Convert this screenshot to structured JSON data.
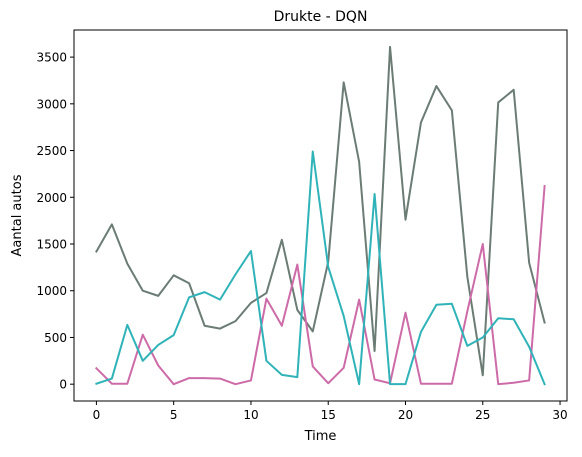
{
  "chart_data": {
    "type": "line",
    "title": "Drukte - DQN",
    "xlabel": "Time",
    "ylabel": "Aantal autos",
    "xlim": [
      -1.45,
      30.45
    ],
    "ylim": [
      -180,
      3790
    ],
    "xticks": [
      0,
      5,
      10,
      15,
      20,
      25,
      30
    ],
    "yticks": [
      0,
      500,
      1000,
      1500,
      2000,
      2500,
      3000,
      3500
    ],
    "grid": false,
    "x": [
      0,
      1,
      2,
      3,
      4,
      5,
      6,
      7,
      8,
      9,
      10,
      11,
      12,
      13,
      14,
      15,
      16,
      17,
      18,
      19,
      20,
      21,
      22,
      23,
      24,
      25,
      26,
      27,
      28,
      29
    ],
    "series": [
      {
        "color": "#6b7c75",
        "values": [
          1420,
          1710,
          1290,
          1000,
          945,
          1165,
          1080,
          625,
          595,
          675,
          870,
          975,
          1545,
          795,
          565,
          1310,
          3230,
          2380,
          355,
          3610,
          1760,
          2800,
          3190,
          2930,
          1150,
          95,
          3015,
          3150,
          1300,
          660
        ]
      },
      {
        "color": "#cd6ba8",
        "values": [
          170,
          5,
          5,
          530,
          200,
          0,
          65,
          65,
          60,
          0,
          40,
          915,
          625,
          1280,
          190,
          10,
          175,
          905,
          50,
          10,
          765,
          5,
          5,
          5,
          780,
          1500,
          0,
          15,
          40,
          2120
        ]
      },
      {
        "color": "#2fb3b8",
        "values": [
          5,
          60,
          635,
          250,
          420,
          525,
          930,
          985,
          905,
          1175,
          1425,
          250,
          100,
          75,
          2490,
          1255,
          730,
          0,
          2035,
          0,
          0,
          560,
          850,
          860,
          410,
          500,
          705,
          695,
          400,
          0
        ]
      }
    ]
  }
}
